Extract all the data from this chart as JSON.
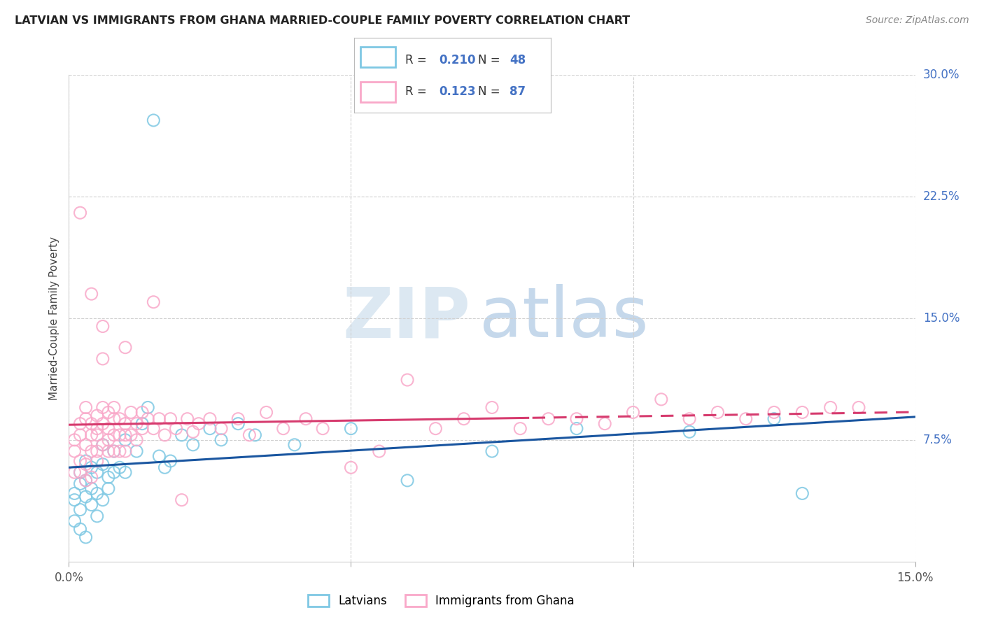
{
  "title": "LATVIAN VS IMMIGRANTS FROM GHANA MARRIED-COUPLE FAMILY POVERTY CORRELATION CHART",
  "source": "Source: ZipAtlas.com",
  "ylabel": "Married-Couple Family Poverty",
  "xmin": 0.0,
  "xmax": 0.15,
  "ymin": 0.0,
  "ymax": 0.3,
  "y_ticks_right": [
    0.075,
    0.15,
    0.225,
    0.3
  ],
  "y_tick_labels_right": [
    "7.5%",
    "15.0%",
    "22.5%",
    "30.0%"
  ],
  "legend_latvians_R": "0.210",
  "legend_latvians_N": "48",
  "legend_ghana_R": "0.123",
  "legend_ghana_N": "87",
  "latvian_color": "#7ec8e3",
  "ghana_color": "#f9a8c9",
  "trend_latvian_color": "#1a56a0",
  "trend_ghana_color": "#d63b6e",
  "latvians_x": [
    0.001,
    0.001,
    0.001,
    0.002,
    0.002,
    0.002,
    0.002,
    0.003,
    0.003,
    0.003,
    0.003,
    0.004,
    0.004,
    0.004,
    0.005,
    0.005,
    0.005,
    0.006,
    0.006,
    0.006,
    0.007,
    0.007,
    0.008,
    0.008,
    0.009,
    0.01,
    0.01,
    0.012,
    0.013,
    0.014,
    0.015,
    0.016,
    0.017,
    0.018,
    0.02,
    0.022,
    0.025,
    0.027,
    0.03,
    0.033,
    0.04,
    0.05,
    0.06,
    0.075,
    0.09,
    0.11,
    0.125,
    0.13
  ],
  "latvians_y": [
    0.042,
    0.038,
    0.025,
    0.048,
    0.032,
    0.055,
    0.02,
    0.05,
    0.062,
    0.04,
    0.015,
    0.045,
    0.058,
    0.035,
    0.055,
    0.042,
    0.028,
    0.072,
    0.06,
    0.038,
    0.052,
    0.045,
    0.068,
    0.055,
    0.058,
    0.075,
    0.055,
    0.068,
    0.085,
    0.095,
    0.272,
    0.065,
    0.058,
    0.062,
    0.078,
    0.072,
    0.082,
    0.075,
    0.085,
    0.078,
    0.072,
    0.082,
    0.05,
    0.068,
    0.082,
    0.08,
    0.088,
    0.042
  ],
  "ghana_x": [
    0.001,
    0.001,
    0.001,
    0.002,
    0.002,
    0.002,
    0.002,
    0.003,
    0.003,
    0.003,
    0.003,
    0.003,
    0.004,
    0.004,
    0.004,
    0.004,
    0.005,
    0.005,
    0.005,
    0.005,
    0.005,
    0.006,
    0.006,
    0.006,
    0.006,
    0.007,
    0.007,
    0.007,
    0.007,
    0.008,
    0.008,
    0.008,
    0.008,
    0.009,
    0.009,
    0.009,
    0.01,
    0.01,
    0.01,
    0.011,
    0.011,
    0.012,
    0.012,
    0.013,
    0.013,
    0.014,
    0.015,
    0.016,
    0.017,
    0.018,
    0.019,
    0.02,
    0.021,
    0.022,
    0.023,
    0.025,
    0.027,
    0.03,
    0.032,
    0.035,
    0.038,
    0.042,
    0.045,
    0.05,
    0.055,
    0.06,
    0.065,
    0.07,
    0.075,
    0.08,
    0.085,
    0.09,
    0.095,
    0.1,
    0.105,
    0.11,
    0.115,
    0.12,
    0.125,
    0.13,
    0.135,
    0.14,
    0.002,
    0.004,
    0.006,
    0.01,
    0.015
  ],
  "ghana_y": [
    0.068,
    0.055,
    0.075,
    0.078,
    0.062,
    0.085,
    0.055,
    0.088,
    0.095,
    0.072,
    0.06,
    0.05,
    0.078,
    0.085,
    0.068,
    0.052,
    0.09,
    0.078,
    0.062,
    0.082,
    0.068,
    0.085,
    0.095,
    0.072,
    0.125,
    0.082,
    0.068,
    0.092,
    0.075,
    0.088,
    0.078,
    0.068,
    0.095,
    0.088,
    0.078,
    0.068,
    0.085,
    0.078,
    0.068,
    0.092,
    0.078,
    0.085,
    0.075,
    0.092,
    0.082,
    0.088,
    0.082,
    0.088,
    0.078,
    0.088,
    0.082,
    0.038,
    0.088,
    0.08,
    0.085,
    0.088,
    0.082,
    0.088,
    0.078,
    0.092,
    0.082,
    0.088,
    0.082,
    0.058,
    0.068,
    0.112,
    0.082,
    0.088,
    0.095,
    0.082,
    0.088,
    0.088,
    0.085,
    0.092,
    0.1,
    0.088,
    0.092,
    0.088,
    0.092,
    0.092,
    0.095,
    0.095,
    0.215,
    0.165,
    0.145,
    0.132,
    0.16
  ]
}
